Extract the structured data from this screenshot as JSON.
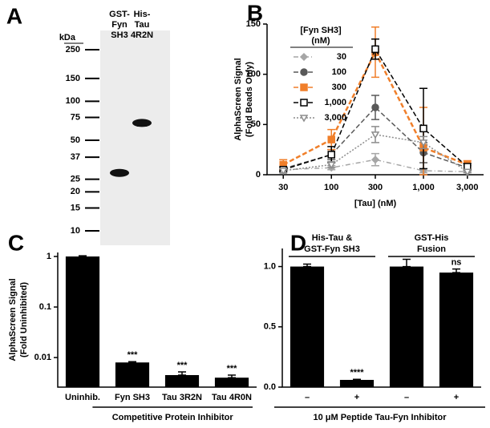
{
  "chart_data": [
    {
      "type": "gel",
      "panel": "A",
      "axis_label": "kDa",
      "lanes": [
        [
          "GST-",
          "Fyn",
          "SH3"
        ],
        [
          "His-",
          "Tau",
          "4R2N"
        ]
      ],
      "band_kda": [
        28,
        68
      ],
      "log_y": true,
      "ylim": [
        10,
        250
      ],
      "yticks": [
        250,
        150,
        100,
        75,
        50,
        37,
        25,
        20,
        15,
        10
      ]
    },
    {
      "type": "line",
      "panel": "B",
      "xlabel": "[Tau] (nM)",
      "ylabel": [
        "AlphaScreen Signal",
        "(Fold Beads Only)"
      ],
      "legend_title": [
        "[Fyn SH3]",
        "(nM)"
      ],
      "legend": "upper left",
      "log_x": true,
      "x": [
        30,
        100,
        300,
        1000,
        3000
      ],
      "xlim": [
        20,
        4500
      ],
      "xticks": [
        30,
        100,
        300,
        {
          "value": 1000,
          "label": "1,000"
        },
        {
          "value": 3000,
          "label": "3,000"
        }
      ],
      "ylim": [
        0,
        150
      ],
      "yticks": [
        0,
        50,
        100,
        150
      ],
      "series": [
        {
          "name": "30",
          "color": "#a6a6a6",
          "marker": "diamond",
          "line_style": "dash-dot",
          "values": [
            5,
            7,
            15,
            4,
            3
          ],
          "errors": [
            2,
            2,
            6,
            2,
            1
          ]
        },
        {
          "name": "100",
          "color": "#595959",
          "marker": "circle",
          "line_style": "dash",
          "values": [
            6,
            20,
            67,
            22,
            7
          ],
          "errors": [
            2,
            5,
            12,
            10,
            2
          ]
        },
        {
          "name": "300",
          "color": "#f07f2a",
          "marker": "square",
          "line_style": "dash",
          "values": [
            10,
            35,
            122,
            27,
            10
          ],
          "errors": [
            5,
            10,
            25,
            40,
            4
          ]
        },
        {
          "name": "1,000",
          "color": "#000000",
          "marker": "open-square",
          "line_style": "dash",
          "values": [
            5,
            20,
            125,
            46,
            8
          ],
          "errors": [
            2,
            8,
            10,
            40,
            3
          ]
        },
        {
          "name": "3,000",
          "color": "#8c8c8c",
          "marker": "open-triangle",
          "line_style": "dot",
          "values": [
            4,
            10,
            40,
            32,
            3
          ],
          "errors": [
            2,
            3,
            8,
            6,
            1
          ]
        }
      ]
    },
    {
      "type": "bar",
      "panel": "C",
      "ylabel": [
        "AlphaScreen Signal",
        "(Fold Uninhibited)"
      ],
      "xlabel": "Competitive Protein Inhibitor",
      "log_y": true,
      "ylim": [
        0.0026,
        1.2
      ],
      "yticks": [
        0.01,
        0.1,
        1
      ],
      "color": "#000000",
      "categories": [
        "Uninhib.",
        "Fyn SH3",
        "Tau 3R2N",
        "Tau 4R0N"
      ],
      "values": [
        1,
        0.008,
        0.0045,
        0.004
      ],
      "errors": [
        0.03,
        0.0003,
        0.0007,
        0.0005
      ],
      "annotations": [
        null,
        "***",
        "***",
        "***"
      ]
    },
    {
      "type": "bar",
      "panel": "D",
      "xlabel": "10 μM Peptide Tau-Fyn Inhibitor",
      "groups": [
        [
          "His-Tau &",
          "GST-Fyn SH3"
        ],
        [
          "GST-His",
          "Fusion"
        ]
      ],
      "ylim": [
        0,
        1.15
      ],
      "yticks": [
        {
          "value": 0,
          "label": "0.0"
        },
        0.5,
        {
          "value": 1,
          "label": "1.0"
        }
      ],
      "color": "#000000",
      "categories": [
        "–",
        "+",
        "–",
        "+"
      ],
      "values": [
        1.0,
        0.06,
        1.0,
        0.95
      ],
      "errors": [
        0.02,
        0.005,
        0.06,
        0.03
      ],
      "annotations": [
        null,
        "****",
        null,
        "ns"
      ]
    }
  ]
}
